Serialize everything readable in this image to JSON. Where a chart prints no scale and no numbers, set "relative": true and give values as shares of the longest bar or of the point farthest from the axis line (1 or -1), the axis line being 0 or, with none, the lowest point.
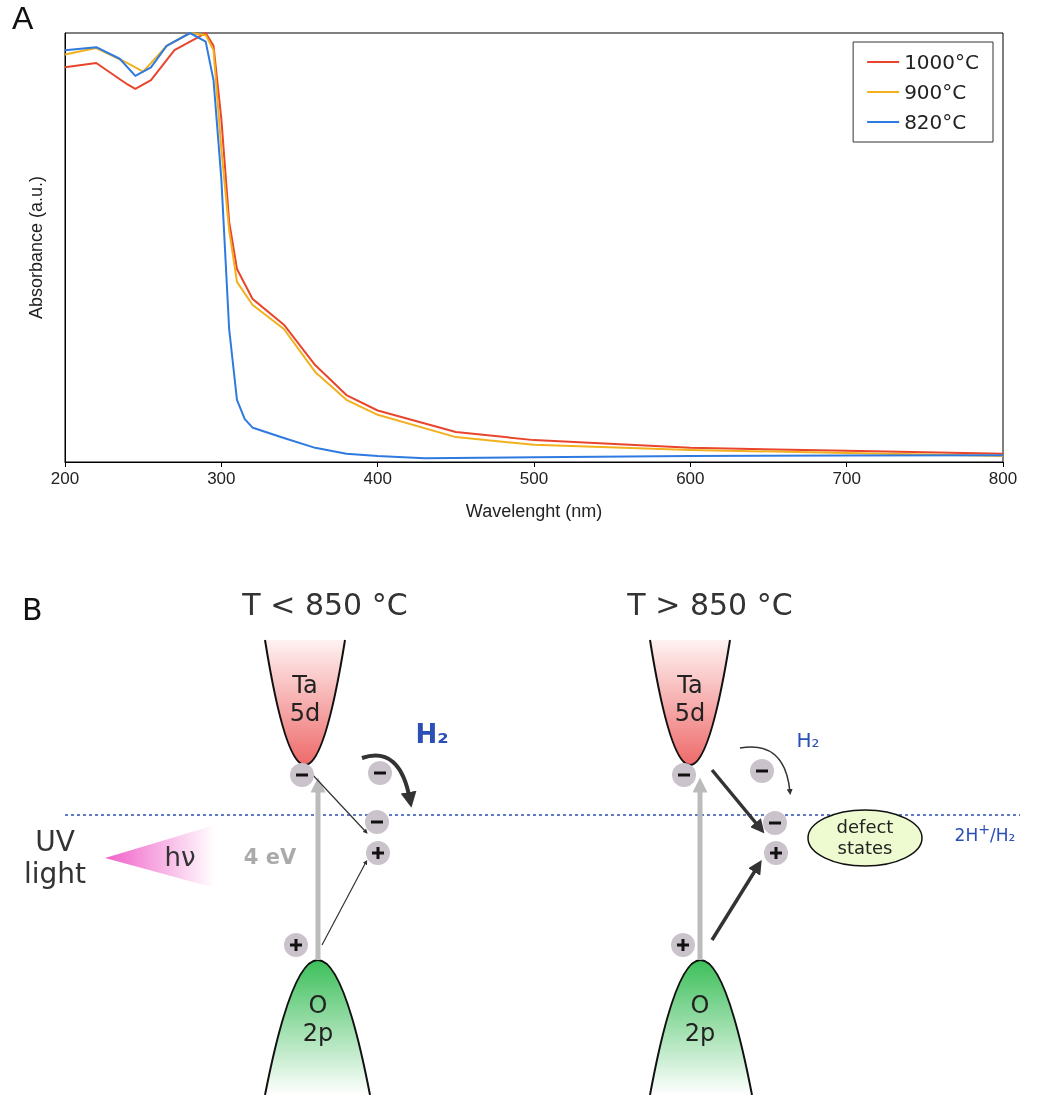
{
  "chart_data": [
    {
      "type": "line",
      "relative": true,
      "xlabel": "Wavelenght (nm)",
      "ylabel": "Absorbance (a.u.)",
      "annotations": [
        "A"
      ],
      "xlim": [
        200,
        800
      ],
      "xticks": [
        200,
        300,
        400,
        500,
        600,
        700,
        800
      ],
      "grid": false,
      "legend": "top right",
      "marker": "none",
      "line_style": "solid",
      "series": [
        {
          "name": "1000°C",
          "color": "#e8452c",
          "x": [
            200,
            220,
            240,
            245,
            255,
            270,
            285,
            290,
            295,
            300,
            305,
            310,
            320,
            340,
            360,
            380,
            400,
            450,
            500,
            600,
            700,
            800
          ],
          "values": [
            0.92,
            0.93,
            0.88,
            0.87,
            0.89,
            0.96,
            0.99,
            1.0,
            0.97,
            0.8,
            0.56,
            0.45,
            0.38,
            0.32,
            0.226,
            0.156,
            0.12,
            0.07,
            0.051,
            0.033,
            0.026,
            0.019
          ]
        },
        {
          "name": "900°C",
          "color": "#f2b01e",
          "x": [
            200,
            220,
            240,
            250,
            265,
            280,
            290,
            295,
            300,
            305,
            310,
            320,
            340,
            360,
            380,
            400,
            450,
            500,
            600,
            700,
            800
          ],
          "values": [
            0.95,
            0.965,
            0.93,
            0.91,
            0.97,
            1.0,
            0.995,
            0.96,
            0.73,
            0.54,
            0.42,
            0.366,
            0.31,
            0.21,
            0.145,
            0.11,
            0.058,
            0.04,
            0.028,
            0.021,
            0.014
          ]
        },
        {
          "name": "820°C",
          "color": "#2f7ae0",
          "x": [
            200,
            220,
            235,
            245,
            255,
            265,
            280,
            290,
            295,
            300,
            305,
            310,
            315,
            320,
            340,
            360,
            380,
            400,
            430,
            500,
            600,
            700,
            800
          ],
          "values": [
            0.96,
            0.967,
            0.94,
            0.9,
            0.92,
            0.97,
            1.0,
            0.98,
            0.89,
            0.66,
            0.31,
            0.145,
            0.1,
            0.08,
            0.056,
            0.033,
            0.019,
            0.014,
            0.009,
            0.011,
            0.014,
            0.015,
            0.016
          ]
        }
      ]
    },
    {
      "type": "other",
      "annotations": [
        "B",
        "T < 850 °C",
        "Ta 5d",
        "H₂",
        "UV light",
        "hν",
        "4 eV",
        "O 2p",
        "T > 850 °C",
        "Ta 5d",
        "H₂",
        "2H$^{+}$/H₂",
        "defect states",
        "O 2p"
      ]
    }
  ]
}
